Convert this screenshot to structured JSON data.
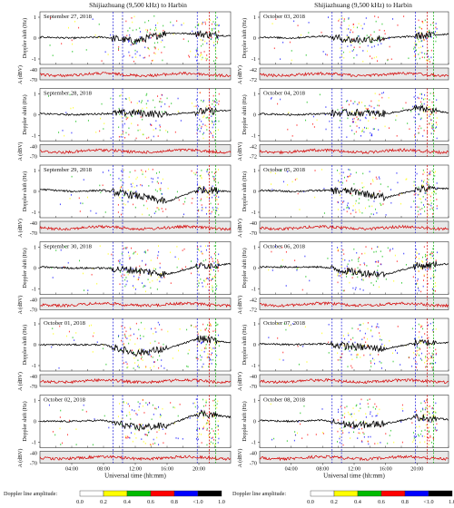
{
  "header": {
    "left_title": "Shijiazhuang (9,500 kHz) to Harbin",
    "right_title": "Shijiazhuang (9,500 kHz) to Harbin"
  },
  "axes": {
    "doppler_label": "Doppler shift (Hz)",
    "amp_label": "A (dBV)",
    "x_label": "Universal time (hh:mm)",
    "x_ticks": [
      "04:00",
      "08:00",
      "12:00",
      "16:00",
      "20:00"
    ],
    "doppler_ticks": [
      "1",
      "0",
      "-1"
    ],
    "amp_ticks_left": [
      "-40",
      "-70"
    ],
    "amp_ticks_right_variant": [
      "-42",
      "-72"
    ]
  },
  "legend": {
    "label": "Doppler line amplitude:",
    "ticks": [
      "0.0",
      "0.2",
      "0.4",
      "0.6",
      "0.8",
      "<1.0",
      "1.0"
    ],
    "colors": [
      "#ffffff",
      "#ffff00",
      "#00bb00",
      "#ff0000",
      "#0000ff",
      "#000000"
    ]
  },
  "chart_data": [
    {
      "type": "line",
      "title": "September 27, 2018",
      "panel": "left-1",
      "amp_ticks": [
        "-40",
        "-70"
      ],
      "x": [
        0,
        4,
        8,
        12,
        16,
        20,
        24
      ],
      "series": [
        {
          "values": [
            0.05,
            0.0,
            0.05,
            -0.15,
            0.25,
            0.2,
            0.1
          ]
        }
      ]
    },
    {
      "type": "line",
      "title": "September 28, 2018",
      "panel": "left-2",
      "amp_ticks": [
        "-40",
        "-70"
      ],
      "x": [
        0,
        4,
        8,
        12,
        16,
        20,
        24
      ],
      "series": [
        {
          "values": [
            0.05,
            0.0,
            0.05,
            0.1,
            0.0,
            0.15,
            0.2
          ]
        }
      ]
    },
    {
      "type": "line",
      "title": "September 29, 2018",
      "panel": "left-3",
      "amp_ticks": [
        "-40",
        "-70"
      ],
      "x": [
        0,
        4,
        8,
        12,
        16,
        20,
        24
      ],
      "series": [
        {
          "values": [
            0.1,
            0.0,
            0.05,
            -0.2,
            -0.5,
            0.1,
            0.0
          ]
        }
      ]
    },
    {
      "type": "line",
      "title": "September 30, 2018",
      "panel": "left-4",
      "amp_ticks": [
        "-40",
        "-70"
      ],
      "x": [
        0,
        4,
        8,
        12,
        16,
        20,
        24
      ],
      "series": [
        {
          "values": [
            0.05,
            0.0,
            0.0,
            -0.1,
            -0.3,
            0.1,
            0.2
          ]
        }
      ]
    },
    {
      "type": "line",
      "title": "October 01, 2018",
      "panel": "left-5",
      "amp_ticks": [
        "-40",
        "-70"
      ],
      "x": [
        0,
        4,
        8,
        12,
        16,
        20,
        24
      ],
      "series": [
        {
          "values": [
            0.0,
            0.0,
            0.0,
            -0.4,
            -0.2,
            0.3,
            0.1
          ]
        }
      ]
    },
    {
      "type": "line",
      "title": "October 02, 2018",
      "panel": "left-6",
      "amp_ticks": [
        "-40",
        "-70"
      ],
      "x": [
        0,
        4,
        8,
        12,
        16,
        20,
        24
      ],
      "series": [
        {
          "values": [
            0.0,
            0.0,
            0.05,
            -0.3,
            -0.2,
            0.4,
            0.2
          ]
        }
      ]
    },
    {
      "type": "line",
      "title": "October 03, 2018",
      "panel": "right-1",
      "amp_ticks": [
        "-42",
        "-72"
      ],
      "x": [
        0,
        4,
        8,
        12,
        16,
        20,
        24
      ],
      "series": [
        {
          "values": [
            0.05,
            0.0,
            0.1,
            -0.1,
            0.0,
            0.1,
            0.2
          ]
        }
      ]
    },
    {
      "type": "line",
      "title": "October 04, 2018",
      "panel": "right-2",
      "amp_ticks": [
        "-42",
        "-72"
      ],
      "x": [
        0,
        4,
        8,
        12,
        16,
        20,
        24
      ],
      "series": [
        {
          "values": [
            0.05,
            0.0,
            0.05,
            0.1,
            0.05,
            0.3,
            0.1
          ]
        }
      ]
    },
    {
      "type": "line",
      "title": "October 05, 2018",
      "panel": "right-3",
      "amp_ticks": [
        "-40",
        "-70"
      ],
      "x": [
        0,
        4,
        8,
        12,
        16,
        20,
        24
      ],
      "series": [
        {
          "values": [
            0.05,
            0.0,
            0.05,
            0.0,
            -0.3,
            0.1,
            0.15
          ]
        }
      ]
    },
    {
      "type": "line",
      "title": "October 06, 2018",
      "panel": "right-4",
      "amp_ticks": [
        "-42",
        "-72"
      ],
      "x": [
        0,
        4,
        8,
        12,
        16,
        20,
        24
      ],
      "series": [
        {
          "values": [
            0.05,
            0.05,
            0.05,
            -0.2,
            -0.3,
            0.1,
            0.2
          ]
        }
      ]
    },
    {
      "type": "line",
      "title": "October 07, 2018",
      "panel": "right-5",
      "amp_ticks": [
        "-40",
        "-70"
      ],
      "x": [
        0,
        4,
        8,
        12,
        16,
        20,
        24
      ],
      "series": [
        {
          "values": [
            0.05,
            0.0,
            0.05,
            -0.1,
            -0.2,
            0.1,
            0.1
          ]
        }
      ]
    },
    {
      "type": "line",
      "title": "October 08, 2018",
      "panel": "right-6",
      "amp_ticks": [
        "-40",
        "-70"
      ],
      "x": [
        0,
        4,
        8,
        12,
        16,
        20,
        24
      ],
      "series": [
        {
          "values": [
            0.05,
            0.0,
            0.05,
            -0.2,
            -0.1,
            0.2,
            0.1
          ]
        }
      ]
    }
  ]
}
